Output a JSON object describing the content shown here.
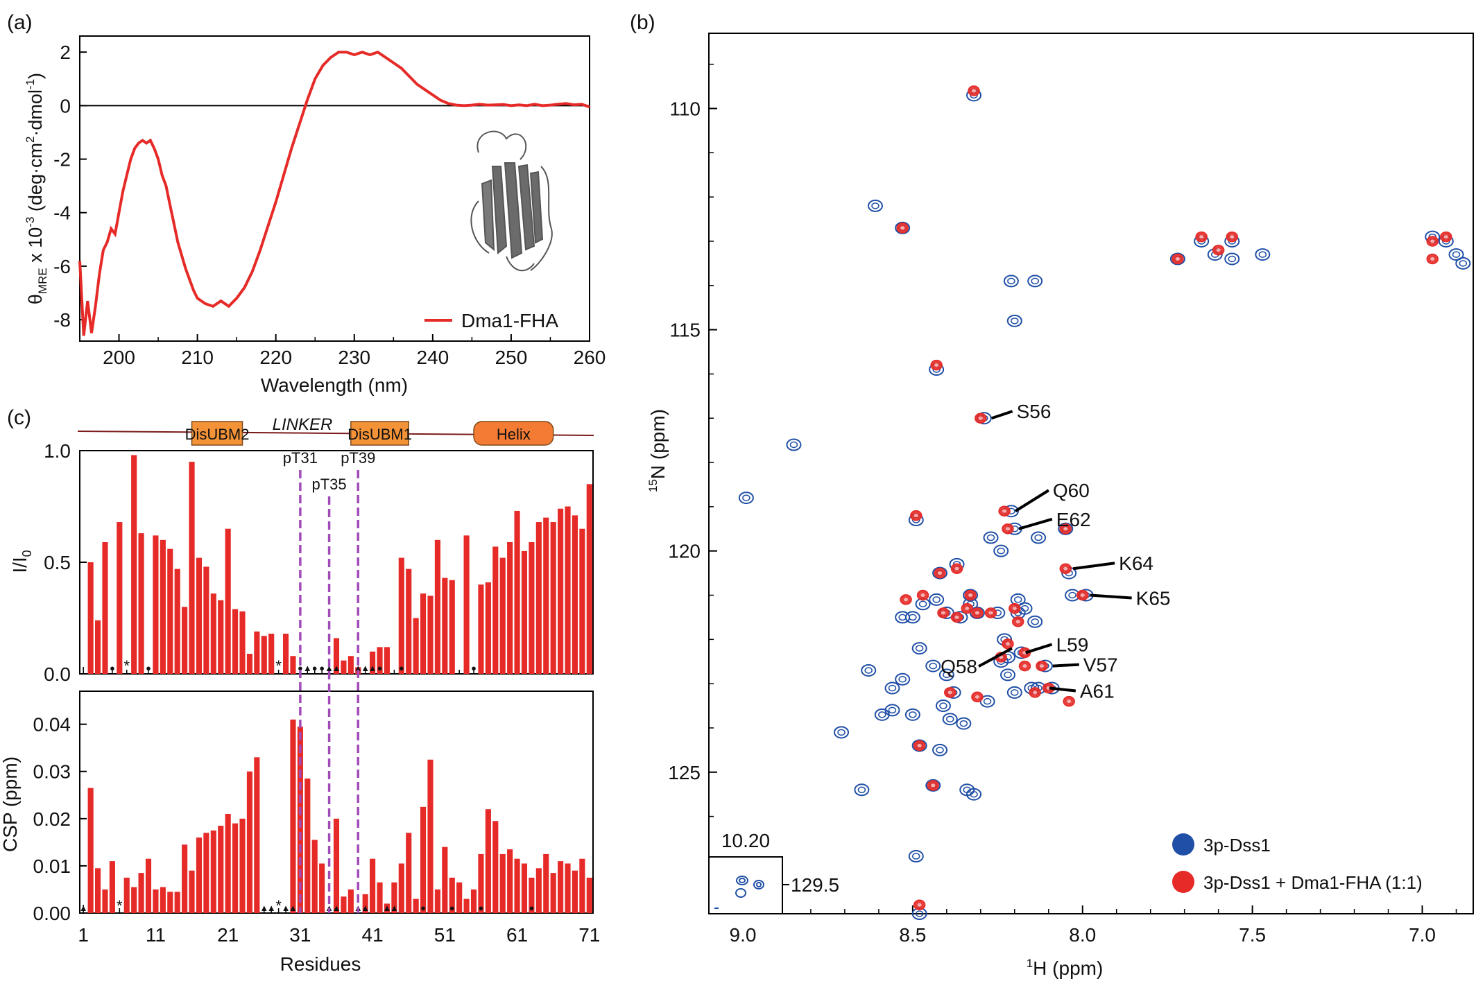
{
  "panel_labels": {
    "a": "(a)",
    "b": "(b)",
    "c": "(c)"
  },
  "colors": {
    "red": "#e52a27",
    "blue": "#1f4fa6",
    "purple": "#a14bb8",
    "orange": "#f39237",
    "helix_orange": "#f47b33",
    "line_brown": "#7b1b1b"
  },
  "chart_data": [
    {
      "id": "cd",
      "type": "line",
      "xlabel": "Wavelength (nm)",
      "ylabel": "θMRE x 10-3 (deg·cm2·dmol-1)",
      "ylabel_parts": {
        "theta": "θ",
        "sub": "MRE",
        "mid": " x 10",
        "exp": "-3",
        "rest": " (deg·cm",
        "exp2": "2",
        "rest2": "·dmol",
        "exp3": "-1",
        "end": ")"
      },
      "xlim": [
        195,
        260
      ],
      "ylim": [
        -8.8,
        2.6
      ],
      "xticks": [
        200,
        210,
        220,
        230,
        240,
        250,
        260
      ],
      "yticks": [
        -8,
        -6,
        -4,
        -2,
        0,
        2
      ],
      "legend": [
        "Dma1-FHA"
      ],
      "legend_position": "bottom-right",
      "series": [
        {
          "name": "Dma1-FHA",
          "color": "#e52a27",
          "x": [
            195,
            195.5,
            196,
            196.5,
            197,
            197.5,
            198,
            198.5,
            199,
            199.5,
            200,
            200.5,
            201,
            201.5,
            202,
            202.5,
            203,
            203.5,
            204,
            204.5,
            205,
            205.5,
            206,
            206.5,
            207,
            207.5,
            208,
            208.5,
            209,
            209.5,
            210,
            211,
            212,
            213,
            214,
            215,
            216,
            217,
            218,
            219,
            220,
            221,
            222,
            223,
            224,
            225,
            226,
            227,
            228,
            229,
            230,
            231,
            232,
            233,
            234,
            235,
            236,
            237,
            238,
            239,
            240,
            241,
            242,
            243,
            244,
            245,
            246,
            247,
            248,
            249,
            250,
            251,
            252,
            253,
            254,
            255,
            256,
            257,
            258,
            259,
            260
          ],
          "y": [
            -5.8,
            -8.6,
            -7.3,
            -8.5,
            -7.5,
            -6.3,
            -5.4,
            -5.1,
            -4.6,
            -4.8,
            -4.0,
            -3.2,
            -2.6,
            -2.0,
            -1.6,
            -1.4,
            -1.3,
            -1.4,
            -1.3,
            -1.6,
            -2.0,
            -2.6,
            -3.0,
            -3.7,
            -4.4,
            -5.1,
            -5.6,
            -6.1,
            -6.5,
            -6.9,
            -7.2,
            -7.4,
            -7.5,
            -7.3,
            -7.5,
            -7.2,
            -6.8,
            -6.2,
            -5.4,
            -4.5,
            -3.6,
            -2.6,
            -1.6,
            -0.7,
            0.2,
            1.0,
            1.5,
            1.8,
            2.0,
            2.0,
            1.9,
            2.0,
            1.9,
            2.0,
            1.8,
            1.6,
            1.4,
            1.1,
            0.8,
            0.6,
            0.4,
            0.2,
            0.08,
            0.02,
            0.0,
            0.02,
            0.05,
            0.02,
            0.03,
            0.04,
            0.0,
            0.03,
            0.0,
            0.05,
            0.0,
            0.02,
            0.05,
            0.08,
            0.03,
            0.05,
            -0.05
          ]
        }
      ]
    },
    {
      "id": "nmr",
      "type": "scatter",
      "xlabel_parts": {
        "sup": "1",
        "text": "H (ppm)"
      },
      "ylabel_parts": {
        "sup": "15",
        "text": "N (ppm)"
      },
      "xlim": [
        9.1,
        6.85
      ],
      "ylim": [
        128.2,
        108.3
      ],
      "xticks": [
        9.0,
        8.5,
        8.0,
        7.5,
        7.0
      ],
      "xtick_labels": [
        "9.0",
        "8.5",
        "8.0",
        "7.5",
        "7.0"
      ],
      "yticks": [
        110,
        115,
        120,
        125
      ],
      "inset": {
        "x_label": "10.20",
        "y_label": "129.5"
      },
      "legend": [
        "3p-Dss1",
        "3p-Dss1 + Dma1-FHA (1:1)"
      ],
      "legend_position": "bottom-right",
      "series": [
        {
          "name": "3p-Dss1",
          "color": "#1f4fa6",
          "points": [
            [
              8.32,
              109.7
            ],
            [
              8.61,
              112.2
            ],
            [
              8.53,
              112.7
            ],
            [
              8.14,
              113.9
            ],
            [
              8.21,
              113.9
            ],
            [
              8.2,
              114.8
            ],
            [
              8.43,
              115.9
            ],
            [
              8.29,
              117.0
            ],
            [
              8.85,
              117.6
            ],
            [
              8.99,
              118.8
            ],
            [
              8.49,
              119.3
            ],
            [
              8.21,
              119.1
            ],
            [
              8.2,
              119.5
            ],
            [
              8.27,
              119.7
            ],
            [
              8.13,
              119.7
            ],
            [
              8.04,
              120.5
            ],
            [
              7.99,
              121.0
            ],
            [
              8.05,
              119.5
            ],
            [
              7.72,
              113.4
            ],
            [
              7.65,
              113.0
            ],
            [
              7.56,
              113.0
            ],
            [
              7.61,
              113.3
            ],
            [
              7.56,
              113.4
            ],
            [
              7.47,
              113.3
            ],
            [
              6.93,
              113.0
            ],
            [
              6.9,
              113.3
            ],
            [
              6.88,
              113.5
            ],
            [
              6.97,
              112.9
            ],
            [
              8.5,
              121.5
            ],
            [
              8.47,
              121.2
            ],
            [
              8.43,
              121.1
            ],
            [
              8.4,
              121.4
            ],
            [
              8.36,
              121.5
            ],
            [
              8.33,
              121.2
            ],
            [
              8.31,
              121.4
            ],
            [
              8.42,
              120.5
            ],
            [
              8.37,
              120.3
            ],
            [
              8.33,
              121.0
            ],
            [
              8.25,
              121.4
            ],
            [
              8.19,
              121.4
            ],
            [
              8.17,
              121.3
            ],
            [
              8.14,
              121.6
            ],
            [
              8.19,
              121.1
            ],
            [
              8.53,
              121.5
            ],
            [
              8.48,
              122.2
            ],
            [
              8.23,
              122.0
            ],
            [
              8.22,
              122.4
            ],
            [
              8.18,
              122.3
            ],
            [
              8.24,
              122.5
            ],
            [
              8.22,
              122.8
            ],
            [
              8.11,
              122.6
            ],
            [
              8.09,
              123.1
            ],
            [
              8.15,
              123.1
            ],
            [
              8.2,
              123.2
            ],
            [
              8.28,
              123.4
            ],
            [
              8.44,
              122.6
            ],
            [
              8.4,
              122.8
            ],
            [
              8.53,
              122.9
            ],
            [
              8.56,
              123.1
            ],
            [
              8.56,
              123.6
            ],
            [
              8.5,
              123.7
            ],
            [
              8.41,
              123.5
            ],
            [
              8.38,
              123.2
            ],
            [
              8.39,
              123.8
            ],
            [
              8.35,
              123.9
            ],
            [
              8.13,
              123.1
            ],
            [
              8.03,
              121.0
            ],
            [
              8.48,
              124.4
            ],
            [
              8.42,
              124.5
            ],
            [
              8.65,
              125.4
            ],
            [
              8.44,
              125.3
            ],
            [
              8.34,
              125.4
            ],
            [
              8.32,
              125.5
            ],
            [
              8.49,
              126.9
            ],
            [
              8.48,
              128.2
            ],
            [
              8.63,
              122.7
            ],
            [
              8.59,
              123.7
            ],
            [
              8.71,
              124.1
            ],
            [
              8.24,
              120.0
            ]
          ]
        },
        {
          "name": "3p-Dss1 + Dma1-FHA (1:1)",
          "color": "#e52a27",
          "points": [
            [
              8.32,
              109.6
            ],
            [
              8.53,
              112.7
            ],
            [
              8.43,
              115.8
            ],
            [
              8.3,
              117.0
            ],
            [
              8.49,
              119.2
            ],
            [
              8.23,
              119.1
            ],
            [
              8.22,
              119.5
            ],
            [
              8.05,
              119.5
            ],
            [
              8.05,
              120.4
            ],
            [
              8.0,
              121.0
            ],
            [
              7.72,
              113.4
            ],
            [
              7.65,
              112.9
            ],
            [
              7.56,
              112.9
            ],
            [
              7.6,
              113.2
            ],
            [
              6.93,
              112.9
            ],
            [
              6.97,
              113.0
            ],
            [
              6.97,
              113.4
            ],
            [
              8.52,
              121.1
            ],
            [
              8.47,
              121.0
            ],
            [
              8.41,
              121.4
            ],
            [
              8.37,
              121.5
            ],
            [
              8.34,
              121.3
            ],
            [
              8.31,
              121.4
            ],
            [
              8.42,
              120.5
            ],
            [
              8.37,
              120.4
            ],
            [
              8.33,
              121.0
            ],
            [
              8.27,
              121.4
            ],
            [
              8.2,
              121.3
            ],
            [
              8.19,
              121.6
            ],
            [
              8.22,
              122.1
            ],
            [
              8.24,
              122.4
            ],
            [
              8.17,
              122.3
            ],
            [
              8.17,
              122.6
            ],
            [
              8.12,
              122.6
            ],
            [
              8.1,
              123.1
            ],
            [
              8.14,
              123.2
            ],
            [
              8.31,
              123.3
            ],
            [
              8.39,
              123.2
            ],
            [
              8.48,
              124.4
            ],
            [
              8.44,
              125.3
            ],
            [
              8.04,
              123.4
            ],
            [
              8.48,
              128.0
            ]
          ]
        }
      ],
      "annotations": [
        {
          "label": "S56",
          "at": [
            8.28,
            117.0
          ]
        },
        {
          "label": "Q60",
          "at": [
            8.21,
            119.1
          ]
        },
        {
          "label": "E62",
          "at": [
            8.2,
            119.5
          ]
        },
        {
          "label": "K64",
          "at": [
            8.04,
            120.4
          ]
        },
        {
          "label": "K65",
          "at": [
            7.99,
            121.0
          ]
        },
        {
          "label": "L59",
          "at": [
            8.18,
            122.3
          ]
        },
        {
          "label": "V57",
          "at": [
            8.1,
            122.6
          ]
        },
        {
          "label": "Q58",
          "at": [
            8.22,
            122.2
          ]
        },
        {
          "label": "A61",
          "at": [
            8.11,
            123.1
          ]
        }
      ]
    },
    {
      "id": "intensity",
      "type": "bar",
      "ylabel_parts": {
        "text": "I/I",
        "sub": "0"
      },
      "ylim": [
        0,
        1.0
      ],
      "yticks": [
        0.0,
        0.5,
        1.0
      ],
      "ytick_labels": [
        "0.0",
        "0.5",
        "1.0"
      ],
      "xlim": [
        0.5,
        71.5
      ],
      "residues": [
        1,
        2,
        3,
        4,
        5,
        6,
        7,
        8,
        9,
        10,
        11,
        12,
        13,
        14,
        15,
        16,
        17,
        18,
        19,
        20,
        21,
        22,
        23,
        24,
        25,
        26,
        27,
        28,
        29,
        30,
        31,
        32,
        33,
        34,
        35,
        36,
        37,
        38,
        39,
        40,
        41,
        42,
        43,
        44,
        45,
        46,
        47,
        48,
        49,
        50,
        51,
        52,
        53,
        54,
        55,
        56,
        57,
        58,
        59,
        60,
        61,
        62,
        63,
        64,
        65,
        66,
        67,
        68,
        69,
        70,
        71
      ],
      "values": [
        0,
        0.5,
        0.24,
        0.59,
        0,
        0.68,
        0,
        0.98,
        0.63,
        0,
        0.62,
        0.6,
        0.56,
        0.47,
        0.3,
        0.95,
        0.52,
        0.48,
        0.36,
        0.33,
        0.65,
        0.29,
        0.28,
        0.09,
        0.19,
        0.17,
        0.18,
        0,
        0.18,
        0.08,
        0,
        0,
        0,
        0,
        0,
        0.16,
        0.06,
        0.08,
        0.03,
        0,
        0.1,
        0.12,
        0.12,
        0,
        0.52,
        0.47,
        0.25,
        0.36,
        0.35,
        0.6,
        0.43,
        0.42,
        0,
        0.62,
        0,
        0.4,
        0.41,
        0.57,
        0.52,
        0.59,
        0.73,
        0.55,
        0.59,
        0.68,
        0.7,
        0.68,
        0.74,
        0.75,
        0.71,
        0.65,
        0.85
      ],
      "markers": {
        "1": "",
        "5": "●",
        "7": "*",
        "10": "●",
        "28": "*",
        "31": "●",
        "32": "▲",
        "33": "●",
        "34": "●",
        "35": "▲",
        "36": "▲",
        "39": "▲",
        "40": "▲",
        "41": "▲",
        "42": "●",
        "45": "●",
        "55": "●"
      },
      "domains": [
        {
          "label": "DisUBM2",
          "start": 16,
          "end": 23,
          "shape": "rect"
        },
        {
          "label": "DisUBM1",
          "start": 38,
          "end": 46,
          "shape": "rect"
        },
        {
          "label": "Helix",
          "start": 55,
          "end": 66,
          "shape": "rounded"
        }
      ],
      "linker_label": "LINKER",
      "phospho_sites": [
        {
          "label": "pT31",
          "residue": 31
        },
        {
          "label": "pT35",
          "residue": 35
        },
        {
          "label": "pT39",
          "residue": 39
        }
      ]
    },
    {
      "id": "csp",
      "type": "bar",
      "xlabel": "Residues",
      "ylabel": "CSP (ppm)",
      "ylim": [
        0,
        0.047
      ],
      "yticks": [
        0.0,
        0.01,
        0.02,
        0.03,
        0.04
      ],
      "ytick_labels": [
        "0.00",
        "0.01",
        "0.02",
        "0.03",
        "0.04"
      ],
      "xlim": [
        0.5,
        71.5
      ],
      "xticks": [
        1,
        11,
        21,
        31,
        41,
        51,
        61,
        71
      ],
      "values": [
        0,
        0.0265,
        0.0095,
        0.005,
        0.011,
        0,
        0.0075,
        0.0055,
        0.0085,
        0.0115,
        0.005,
        0.0055,
        0.0045,
        0.0045,
        0.0145,
        0.009,
        0.016,
        0.017,
        0.0175,
        0.0185,
        0.021,
        0.019,
        0.02,
        0.03,
        0.033,
        0,
        0,
        0,
        0,
        0.041,
        0.0395,
        0.0285,
        0.0155,
        0.0105,
        0,
        0.02,
        0.0035,
        0.005,
        0,
        0.004,
        0.0115,
        0.0065,
        0.002,
        0.0065,
        0.0105,
        0.017,
        0.003,
        0.0225,
        0.0325,
        0.005,
        0.014,
        0.0075,
        0.0065,
        0.003,
        0.005,
        0.0125,
        0.022,
        0.0195,
        0.0125,
        0.0135,
        0.0115,
        0.0105,
        0.0075,
        0.0095,
        0.0125,
        0.0085,
        0.011,
        0.0105,
        0.009,
        0.0115,
        0.0075
      ],
      "markers": {
        "1": "▲",
        "6": "*",
        "26": "▲",
        "27": "▲",
        "28": "*",
        "29": "▲",
        "30": "▲",
        "35": "▲",
        "36": "▲",
        "39": "▲",
        "40": "▲",
        "43": "▲",
        "44": "▲",
        "48": "●",
        "52": "●",
        "56": "●",
        "63": "●"
      }
    }
  ]
}
